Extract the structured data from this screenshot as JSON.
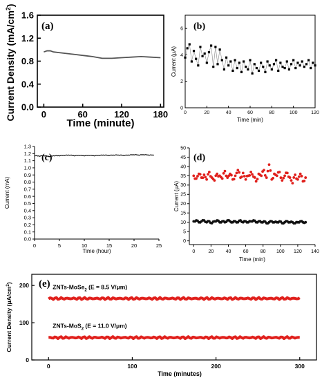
{
  "figure_title": "",
  "chart_data": [
    {
      "id": "a",
      "panel_label": "(a)",
      "type": "line",
      "xlabel": "Time (minute)",
      "ylabel_main": "Current Density (mA/cm",
      "ylabel_sup": "2",
      "ylabel_tail": ")",
      "xlim": [
        -10,
        185
      ],
      "ylim": [
        0,
        1.6
      ],
      "x_ticks": [
        0,
        60,
        120,
        180
      ],
      "y_ticks": [
        0.0,
        0.4,
        0.8,
        1.2,
        1.6
      ],
      "y_tick_labels": [
        "0.0",
        "0.4",
        "0.8",
        "1.2",
        "1.6"
      ],
      "series": [
        {
          "color": "#555555",
          "x": [
            0,
            5,
            10,
            15,
            30,
            45,
            60,
            75,
            90,
            105,
            120,
            135,
            150,
            165,
            180
          ],
          "y": [
            0.96,
            0.98,
            0.98,
            0.96,
            0.94,
            0.92,
            0.9,
            0.88,
            0.85,
            0.85,
            0.86,
            0.87,
            0.88,
            0.87,
            0.86
          ]
        }
      ]
    },
    {
      "id": "b",
      "panel_label": "(b)",
      "type": "scatter",
      "xlabel": "Time (min)",
      "ylabel": "Current (μA)",
      "xlim": [
        0,
        120
      ],
      "ylim": [
        0,
        7
      ],
      "x_ticks": [
        0,
        20,
        40,
        60,
        80,
        100,
        120
      ],
      "y_ticks": [
        0,
        2,
        4,
        6
      ],
      "series": [
        {
          "color": "#000000",
          "marker": "square",
          "connect": true,
          "x": [
            0,
            2,
            4,
            6,
            8,
            10,
            12,
            14,
            16,
            18,
            20,
            22,
            24,
            26,
            28,
            30,
            32,
            34,
            36,
            38,
            40,
            42,
            44,
            46,
            48,
            50,
            52,
            54,
            56,
            58,
            60,
            62,
            64,
            66,
            68,
            70,
            72,
            74,
            76,
            78,
            80,
            82,
            84,
            86,
            88,
            90,
            92,
            94,
            96,
            98,
            100,
            102,
            104,
            106,
            108,
            110,
            112,
            114,
            116,
            118,
            120
          ],
          "y": [
            3.8,
            4.5,
            4.8,
            3.5,
            4.3,
            3.7,
            3.2,
            4.6,
            3.9,
            4.1,
            3.4,
            4.2,
            4.7,
            3.1,
            4.6,
            3.3,
            4.4,
            3.6,
            2.9,
            3.8,
            3.2,
            3.5,
            2.8,
            3.6,
            3.0,
            3.4,
            2.7,
            3.5,
            3.1,
            2.9,
            3.6,
            2.6,
            3.3,
            3.0,
            2.8,
            3.4,
            3.1,
            2.7,
            3.5,
            3.2,
            2.9,
            3.3,
            3.6,
            2.8,
            3.4,
            3.1,
            3.0,
            3.5,
            2.9,
            3.3,
            3.6,
            3.0,
            3.4,
            3.2,
            3.5,
            3.1,
            3.3,
            3.6,
            3.0,
            3.4,
            3.2
          ]
        }
      ]
    },
    {
      "id": "c",
      "panel_label": "(c)",
      "type": "line",
      "xlabel": "Time (hour)",
      "ylabel": "Current (mA)",
      "xlim": [
        0,
        25
      ],
      "ylim": [
        0.0,
        1.3
      ],
      "x_ticks": [
        0,
        5,
        10,
        15,
        20,
        25
      ],
      "y_ticks": [
        0.0,
        0.1,
        0.2,
        0.3,
        0.4,
        0.5,
        0.6,
        0.7,
        0.8,
        0.9,
        1.0,
        1.1,
        1.2,
        1.3
      ],
      "y_tick_labels": [
        "0.0",
        "0.1",
        "0.2",
        "0.3",
        "0.4",
        "0.5",
        "0.6",
        "0.7",
        "0.8",
        "0.9",
        "1.0",
        "1.1",
        "1.2",
        "1.3"
      ],
      "series": [
        {
          "color": "#000000",
          "x": [
            0,
            1,
            2,
            3,
            4,
            5,
            6,
            7,
            8,
            9,
            10,
            11,
            12,
            13,
            14,
            15,
            16,
            17,
            18,
            19,
            20,
            21,
            22,
            23,
            24
          ],
          "y": [
            1.17,
            1.165,
            1.17,
            1.16,
            1.17,
            1.17,
            1.175,
            1.18,
            1.17,
            1.175,
            1.17,
            1.175,
            1.17,
            1.175,
            1.18,
            1.175,
            1.18,
            1.18,
            1.175,
            1.18,
            1.185,
            1.18,
            1.185,
            1.18,
            1.18
          ]
        }
      ]
    },
    {
      "id": "d",
      "panel_label": "(d)",
      "type": "scatter",
      "xlabel": "Time (min)",
      "ylabel": "Current (μA)",
      "xlim": [
        -5,
        140
      ],
      "ylim": [
        -2,
        50
      ],
      "x_ticks": [
        0,
        20,
        40,
        60,
        80,
        100,
        120,
        140
      ],
      "y_ticks": [
        0,
        5,
        10,
        15,
        20,
        25,
        30,
        35,
        40,
        45,
        50
      ],
      "series": [
        {
          "color": "#e0201c",
          "marker": "circle",
          "x": [
            0,
            3,
            6,
            9,
            12,
            15,
            18,
            21,
            24,
            27,
            30,
            33,
            36,
            39,
            42,
            45,
            48,
            51,
            54,
            57,
            60,
            63,
            66,
            69,
            72,
            75,
            78,
            81,
            84,
            87,
            90,
            93,
            96,
            99,
            102,
            105,
            108,
            111,
            114,
            117,
            120,
            123,
            126,
            129
          ],
          "y": [
            35,
            33.5,
            36,
            34,
            35.5,
            33,
            37,
            34,
            32.5,
            36,
            35,
            33.5,
            37.5,
            34,
            36,
            33,
            35,
            38,
            34,
            36.5,
            33,
            35,
            37,
            34.5,
            32,
            36,
            35,
            38,
            34,
            41,
            33,
            36,
            35,
            37,
            32.5,
            35,
            36.5,
            34,
            31,
            35.5,
            33,
            36,
            32,
            34
          ]
        },
        {
          "color": "#111111",
          "marker": "circle",
          "x": [
            0,
            3,
            6,
            9,
            12,
            15,
            18,
            21,
            24,
            27,
            30,
            33,
            36,
            39,
            42,
            45,
            48,
            51,
            54,
            57,
            60,
            63,
            66,
            69,
            72,
            75,
            78,
            81,
            84,
            87,
            90,
            93,
            96,
            99,
            102,
            105,
            108,
            111,
            114,
            117,
            120,
            123,
            126,
            129
          ],
          "y": [
            10.5,
            11,
            10,
            10.5,
            11,
            10,
            10.5,
            9.5,
            10.5,
            11,
            10,
            10.5,
            10,
            11,
            10.5,
            10,
            10.5,
            10,
            11,
            10,
            10.5,
            10,
            10.5,
            11,
            10,
            10.5,
            10,
            10.5,
            9.5,
            10,
            10.5,
            10,
            10,
            10.5,
            9.5,
            10,
            10.5,
            10,
            10,
            9.5,
            10,
            10.5,
            10,
            10
          ]
        }
      ]
    },
    {
      "id": "e",
      "panel_label": "(e)",
      "type": "line",
      "xlabel": "Time (minutes)",
      "ylabel": "Current Density (μA/cm",
      "ylabel_sup": "2",
      "ylabel_tail": ")",
      "xlim": [
        -20,
        320
      ],
      "ylim": [
        0,
        230
      ],
      "x_ticks": [
        0,
        100,
        200,
        300
      ],
      "y_ticks": [
        0,
        100,
        200
      ],
      "annotations": [
        {
          "text_main": "ZNTs-MoSe",
          "sub": "2",
          "text_tail": " (E = 8.5 V/μm)",
          "x": 5,
          "y": 190
        },
        {
          "text_main": "ZNTs-MoS",
          "sub": "2",
          "text_tail": " (E = 11.0 V/μm)",
          "x": 5,
          "y": 86
        }
      ],
      "series": [
        {
          "color": "#e0201c",
          "x": [
            0,
            300
          ],
          "y": [
            165,
            165
          ],
          "band": 3
        },
        {
          "color": "#e0201c",
          "x": [
            0,
            300
          ],
          "y": [
            60,
            60
          ],
          "band": 3
        }
      ]
    }
  ]
}
